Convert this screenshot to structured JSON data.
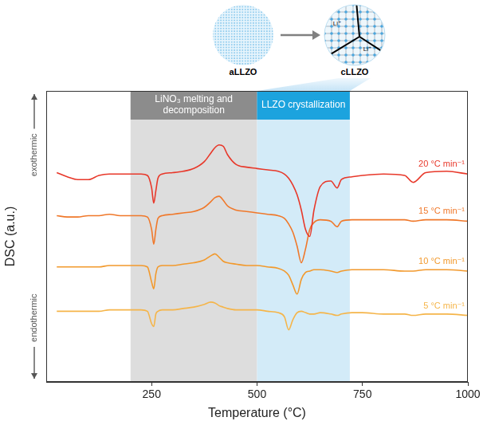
{
  "chart_data": {
    "type": "line",
    "x_label": "Temperature (°C)",
    "y_label": "DSC (a.u.)",
    "x": [
      25,
      50,
      75,
      100,
      125,
      150,
      175,
      200,
      225,
      240,
      250,
      255,
      260,
      265,
      275,
      300,
      325,
      350,
      375,
      390,
      400,
      410,
      420,
      430,
      450,
      475,
      500,
      525,
      550,
      565,
      575,
      585,
      595,
      605,
      615,
      625,
      635,
      650,
      675,
      690,
      700,
      725,
      750,
      800,
      850,
      870,
      900,
      950,
      1000
    ],
    "xlim": [
      0,
      1000
    ],
    "xticks": [
      250,
      500,
      750,
      1000
    ],
    "ylim": [
      0,
      10.5
    ],
    "tick_labels": "x",
    "grid": false,
    "series": [
      {
        "name": "20 °C min⁻¹",
        "color": "#e8382a",
        "values": [
          7.55,
          7.4,
          7.3,
          7.3,
          7.45,
          7.5,
          7.5,
          7.5,
          7.5,
          7.45,
          7.0,
          6.45,
          6.9,
          7.35,
          7.5,
          7.55,
          7.6,
          7.7,
          7.95,
          8.25,
          8.45,
          8.55,
          8.5,
          8.2,
          7.85,
          7.75,
          7.7,
          7.65,
          7.6,
          7.5,
          7.35,
          7.1,
          6.75,
          6.2,
          5.5,
          5.25,
          6.2,
          7.05,
          7.25,
          7.0,
          7.3,
          7.4,
          7.45,
          7.5,
          7.45,
          7.2,
          7.55,
          7.6,
          7.5
        ]
      },
      {
        "name": "15 °C min⁻¹",
        "color": "#f0782a",
        "values": [
          6.0,
          5.95,
          5.95,
          6.0,
          6.0,
          6.05,
          6.0,
          6.0,
          6.0,
          5.95,
          5.5,
          4.97,
          5.5,
          5.9,
          6.0,
          6.05,
          6.1,
          6.15,
          6.3,
          6.5,
          6.65,
          6.7,
          6.55,
          6.35,
          6.2,
          6.15,
          6.1,
          6.05,
          6.0,
          5.9,
          5.7,
          5.4,
          4.9,
          4.3,
          4.8,
          5.5,
          5.75,
          5.85,
          5.8,
          5.6,
          5.8,
          5.85,
          5.85,
          5.85,
          5.85,
          5.8,
          5.85,
          5.85,
          5.8
        ]
      },
      {
        "name": "10 °C min⁻¹",
        "color": "#f2992c",
        "values": [
          4.15,
          4.15,
          4.15,
          4.15,
          4.15,
          4.2,
          4.2,
          4.2,
          4.2,
          4.15,
          3.6,
          3.36,
          3.9,
          4.15,
          4.2,
          4.2,
          4.25,
          4.3,
          4.4,
          4.55,
          4.62,
          4.5,
          4.35,
          4.3,
          4.25,
          4.2,
          4.2,
          4.15,
          4.1,
          4.0,
          3.85,
          3.5,
          3.17,
          3.7,
          3.95,
          4.0,
          4.05,
          4.05,
          4.0,
          3.95,
          4.0,
          4.05,
          4.05,
          4.05,
          4.0,
          4.0,
          4.05,
          4.05,
          4.0
        ]
      },
      {
        "name": "5 °C min⁻¹",
        "color": "#f5b54a",
        "values": [
          2.55,
          2.55,
          2.55,
          2.55,
          2.55,
          2.6,
          2.6,
          2.6,
          2.6,
          2.55,
          2.1,
          2.0,
          2.45,
          2.55,
          2.6,
          2.6,
          2.65,
          2.7,
          2.8,
          2.88,
          2.85,
          2.75,
          2.7,
          2.65,
          2.6,
          2.6,
          2.6,
          2.55,
          2.5,
          2.35,
          1.88,
          2.25,
          2.5,
          2.55,
          2.5,
          2.45,
          2.45,
          2.5,
          2.45,
          2.4,
          2.45,
          2.5,
          2.5,
          2.45,
          2.45,
          2.4,
          2.45,
          2.45,
          2.4
        ]
      }
    ],
    "regions": [
      {
        "label": "LiNO₃ melting and decomposition",
        "start": 200,
        "end": 500,
        "color": "#dddddd"
      },
      {
        "label": "LLZO crystallization",
        "start": 500,
        "end": 720,
        "color": "#d3ebf8"
      }
    ],
    "annotations": [
      {
        "text": "exothermic",
        "direction": "up"
      },
      {
        "text": "endothermic",
        "direction": "down"
      }
    ]
  },
  "illustration": {
    "from": "aLLZO",
    "to": "cLLZO",
    "ion_labels": [
      "Li⁺",
      "Li⁺"
    ]
  }
}
